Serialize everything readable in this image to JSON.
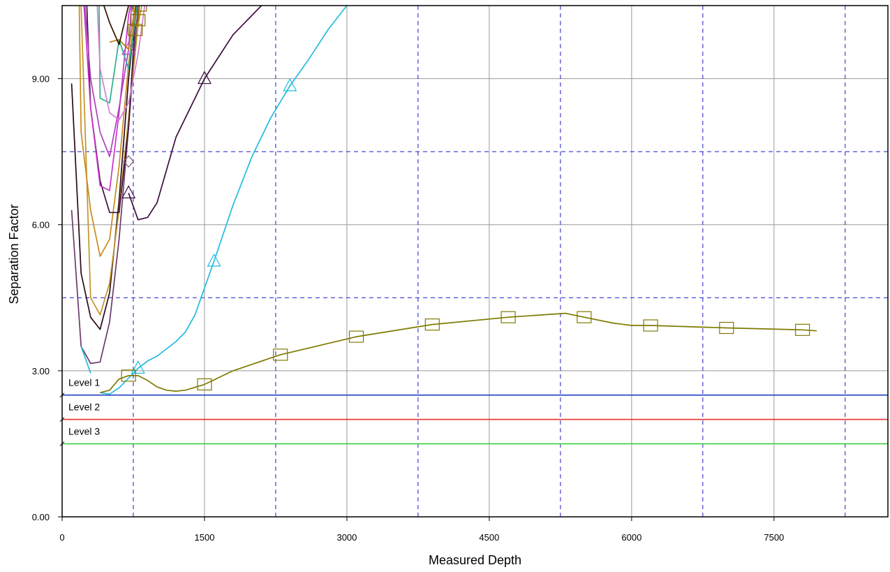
{
  "chart_data": {
    "type": "line",
    "title": "",
    "xlabel": "Measured Depth",
    "ylabel": "Separation  Factor",
    "xlim": [
      0,
      8700
    ],
    "ylim": [
      0,
      10.5
    ],
    "x_ticks": [
      0,
      1500,
      3000,
      4500,
      6000,
      7500
    ],
    "x_tick_labels": [
      "0",
      "1500",
      "3000",
      "4500",
      "6000",
      "7500"
    ],
    "y_ticks": [
      0,
      3,
      6,
      9
    ],
    "y_tick_labels": [
      "0.00",
      "3.00",
      "6.00",
      "9.00"
    ],
    "grid": true,
    "major_grid_color": "#999999",
    "minor_grid_color": "#1a1acc",
    "minor_grid_x": [
      750,
      2250,
      3750,
      5250,
      6750,
      8250
    ],
    "minor_grid_y": [
      4.5,
      7.5
    ],
    "levels": [
      {
        "name": "Level 1",
        "value": 2.5,
        "color": "#1f3fbf"
      },
      {
        "name": "Level 2",
        "value": 2.0,
        "color": "#e8312a"
      },
      {
        "name": "Level 3",
        "value": 1.5,
        "color": "#3ccc3c"
      }
    ],
    "series": [
      {
        "color": "#2b0a1a",
        "marker": "none",
        "x": [
          100,
          200,
          300,
          400,
          500,
          600,
          700,
          780
        ],
        "y": [
          8.9,
          5.0,
          4.1,
          3.85,
          4.6,
          6.5,
          9.0,
          10.5
        ]
      },
      {
        "color": "#6b3a6b",
        "marker": "none",
        "x": [
          100,
          200,
          300,
          400,
          500,
          600,
          700,
          800
        ],
        "y": [
          6.3,
          3.5,
          3.15,
          3.18,
          4.0,
          5.7,
          8.0,
          10.5
        ]
      },
      {
        "color": "#c0962a",
        "marker": "none",
        "x": [
          200,
          300,
          400,
          500,
          600,
          700,
          800,
          840
        ],
        "y": [
          10.5,
          4.5,
          4.15,
          4.8,
          6.3,
          8.2,
          10.1,
          10.5
        ]
      },
      {
        "color": "#c88a1a",
        "marker": "none",
        "x": [
          180,
          200,
          300,
          400,
          500,
          600,
          700,
          780
        ],
        "y": [
          10.5,
          7.9,
          6.3,
          5.35,
          5.7,
          7.2,
          9.3,
          10.5
        ]
      },
      {
        "color": "#3d1040",
        "marker": "none",
        "x": [
          260,
          300,
          400,
          500,
          600,
          700,
          780
        ],
        "y": [
          10.5,
          8.4,
          6.9,
          6.25,
          6.25,
          8.0,
          10.5
        ]
      },
      {
        "color": "#cc33cc",
        "marker": "none",
        "x": [
          230,
          300,
          400,
          500,
          600,
          700,
          720
        ],
        "y": [
          10.5,
          8.4,
          6.8,
          6.7,
          8.3,
          10.3,
          10.5
        ]
      },
      {
        "color": "#b040c0",
        "marker": "triangle",
        "x": [
          240,
          300,
          400,
          500,
          600,
          700,
          730
        ],
        "y": [
          10.5,
          9.0,
          7.9,
          7.4,
          8.4,
          9.6,
          10.5
        ]
      },
      {
        "color": "#2ab090",
        "marker": "none",
        "x": [
          390,
          400,
          500,
          600,
          700,
          790
        ],
        "y": [
          10.5,
          8.6,
          8.5,
          9.8,
          9.2,
          10.5
        ]
      },
      {
        "color": "#d080d0",
        "marker": "none",
        "x": [
          370,
          400,
          500,
          600,
          700,
          800,
          870
        ],
        "y": [
          10.5,
          9.2,
          8.3,
          8.15,
          8.5,
          9.5,
          10.5
        ]
      },
      {
        "color": "#b87a10",
        "marker": "none",
        "x": [
          500,
          600,
          700,
          770
        ],
        "y": [
          9.75,
          9.8,
          9.6,
          10.5
        ]
      },
      {
        "color": "#2b1500",
        "marker": "none",
        "x": [
          440,
          500,
          600,
          700
        ],
        "y": [
          10.5,
          10.15,
          9.7,
          10.5
        ]
      },
      {
        "color": "#8c6a00",
        "marker": "square",
        "x": [
          770,
          800,
          815
        ],
        "y": [
          10.0,
          10.2,
          10.5
        ]
      },
      {
        "color": "#7a5a70",
        "marker": "diamond",
        "x": [
          700
        ],
        "y": [
          7.3
        ]
      },
      {
        "color": "#3d0a3d",
        "marker": "triangle",
        "x": [
          700,
          800,
          900,
          1000,
          1200,
          1500,
          1800,
          2100
        ],
        "y": [
          6.65,
          6.1,
          6.15,
          6.45,
          7.8,
          9.0,
          9.9,
          10.5
        ]
      },
      {
        "color": "#22bbe0",
        "marker": "triangle",
        "x": [
          200,
          300
        ],
        "y": [
          3.5,
          2.95
        ]
      },
      {
        "color": "#22bbe0",
        "marker": "triangle",
        "x": [
          400,
          500,
          600,
          700,
          800,
          900,
          1000,
          1100,
          1200,
          1300,
          1400,
          1500,
          1600,
          1800,
          2000,
          2200,
          2400,
          2600,
          2800,
          3000
        ],
        "y": [
          2.55,
          2.52,
          2.65,
          2.85,
          3.05,
          3.2,
          3.3,
          3.45,
          3.6,
          3.8,
          4.15,
          4.7,
          5.25,
          6.4,
          7.4,
          8.2,
          8.85,
          9.4,
          10.0,
          10.5
        ]
      },
      {
        "color": "#7f7a00",
        "marker": "square",
        "x": [
          400,
          500,
          600,
          700,
          800,
          900,
          1000,
          1100,
          1200,
          1300,
          1500,
          1800,
          2300,
          3100,
          3900,
          4700,
          5300,
          5500,
          5800,
          6000,
          6200,
          7000,
          7800,
          7950
        ],
        "y": [
          2.55,
          2.6,
          2.83,
          2.9,
          2.9,
          2.8,
          2.67,
          2.6,
          2.58,
          2.6,
          2.72,
          3.0,
          3.33,
          3.7,
          3.95,
          4.1,
          4.18,
          4.1,
          3.98,
          3.93,
          3.93,
          3.88,
          3.84,
          3.82
        ]
      }
    ]
  }
}
